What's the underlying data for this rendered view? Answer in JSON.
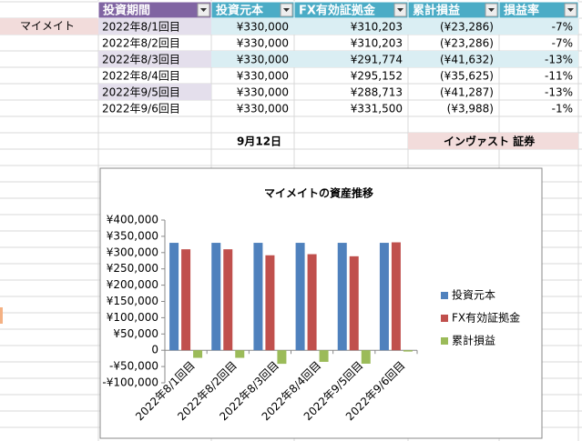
{
  "table": {
    "row_label": "マイメイト",
    "headers": [
      "投資期間",
      "投資元本",
      "FX有効証拠金",
      "累計損益",
      "損益率"
    ],
    "rows": [
      [
        "2022年8/1回目",
        "¥330,000",
        "¥310,203",
        "(¥23,286)",
        "-7%"
      ],
      [
        "2022年8/2回目",
        "¥330,000",
        "¥310,203",
        "(¥23,286)",
        "-7%"
      ],
      [
        "2022年8/3回目",
        "¥330,000",
        "¥291,774",
        "(¥41,632)",
        "-13%"
      ],
      [
        "2022年8/4回目",
        "¥330,000",
        "¥295,152",
        "(¥35,625)",
        "-11%"
      ],
      [
        "2022年9/5回目",
        "¥330,000",
        "¥288,713",
        "(¥41,287)",
        "-13%"
      ],
      [
        "2022年9/6回目",
        "¥330,000",
        "¥331,500",
        "(¥3,988)",
        "-1%"
      ]
    ],
    "date": "9月12日",
    "company": "インヴァスト 証券"
  },
  "chart_data": {
    "type": "bar",
    "title": "マイメイトの資産推移",
    "categories": [
      "2022年8/1回目",
      "2022年8/2回目",
      "2022年8/3回目",
      "2022年8/4回目",
      "2022年9/5回目",
      "2022年9/6回目"
    ],
    "series": [
      {
        "name": "投資元本",
        "color": "#4f81bd",
        "values": [
          330000,
          330000,
          330000,
          330000,
          330000,
          330000
        ]
      },
      {
        "name": "FX有効証拠金",
        "color": "#c0504d",
        "values": [
          310203,
          310203,
          291774,
          295152,
          288713,
          331500
        ]
      },
      {
        "name": "累計損益",
        "color": "#9bbb59",
        "values": [
          -23286,
          -23286,
          -41632,
          -35625,
          -41287,
          -3988
        ]
      }
    ],
    "ylim": [
      -100000,
      400000
    ],
    "yticks": [
      {
        "value": -100000,
        "label": "-¥100,000"
      },
      {
        "value": -50000,
        "label": "-¥50,000"
      },
      0,
      {
        "value": 50000,
        "label": "¥50,000"
      },
      {
        "value": 100000,
        "label": "¥100,000"
      },
      {
        "value": 150000,
        "label": "¥150,000"
      },
      {
        "value": 200000,
        "label": "¥200,000"
      },
      {
        "value": 250000,
        "label": "¥250,000"
      },
      {
        "value": 300000,
        "label": "¥300,000"
      },
      {
        "value": 350000,
        "label": "¥350,000"
      },
      {
        "value": 400000,
        "label": "¥400,000"
      }
    ],
    "legend": "right"
  }
}
